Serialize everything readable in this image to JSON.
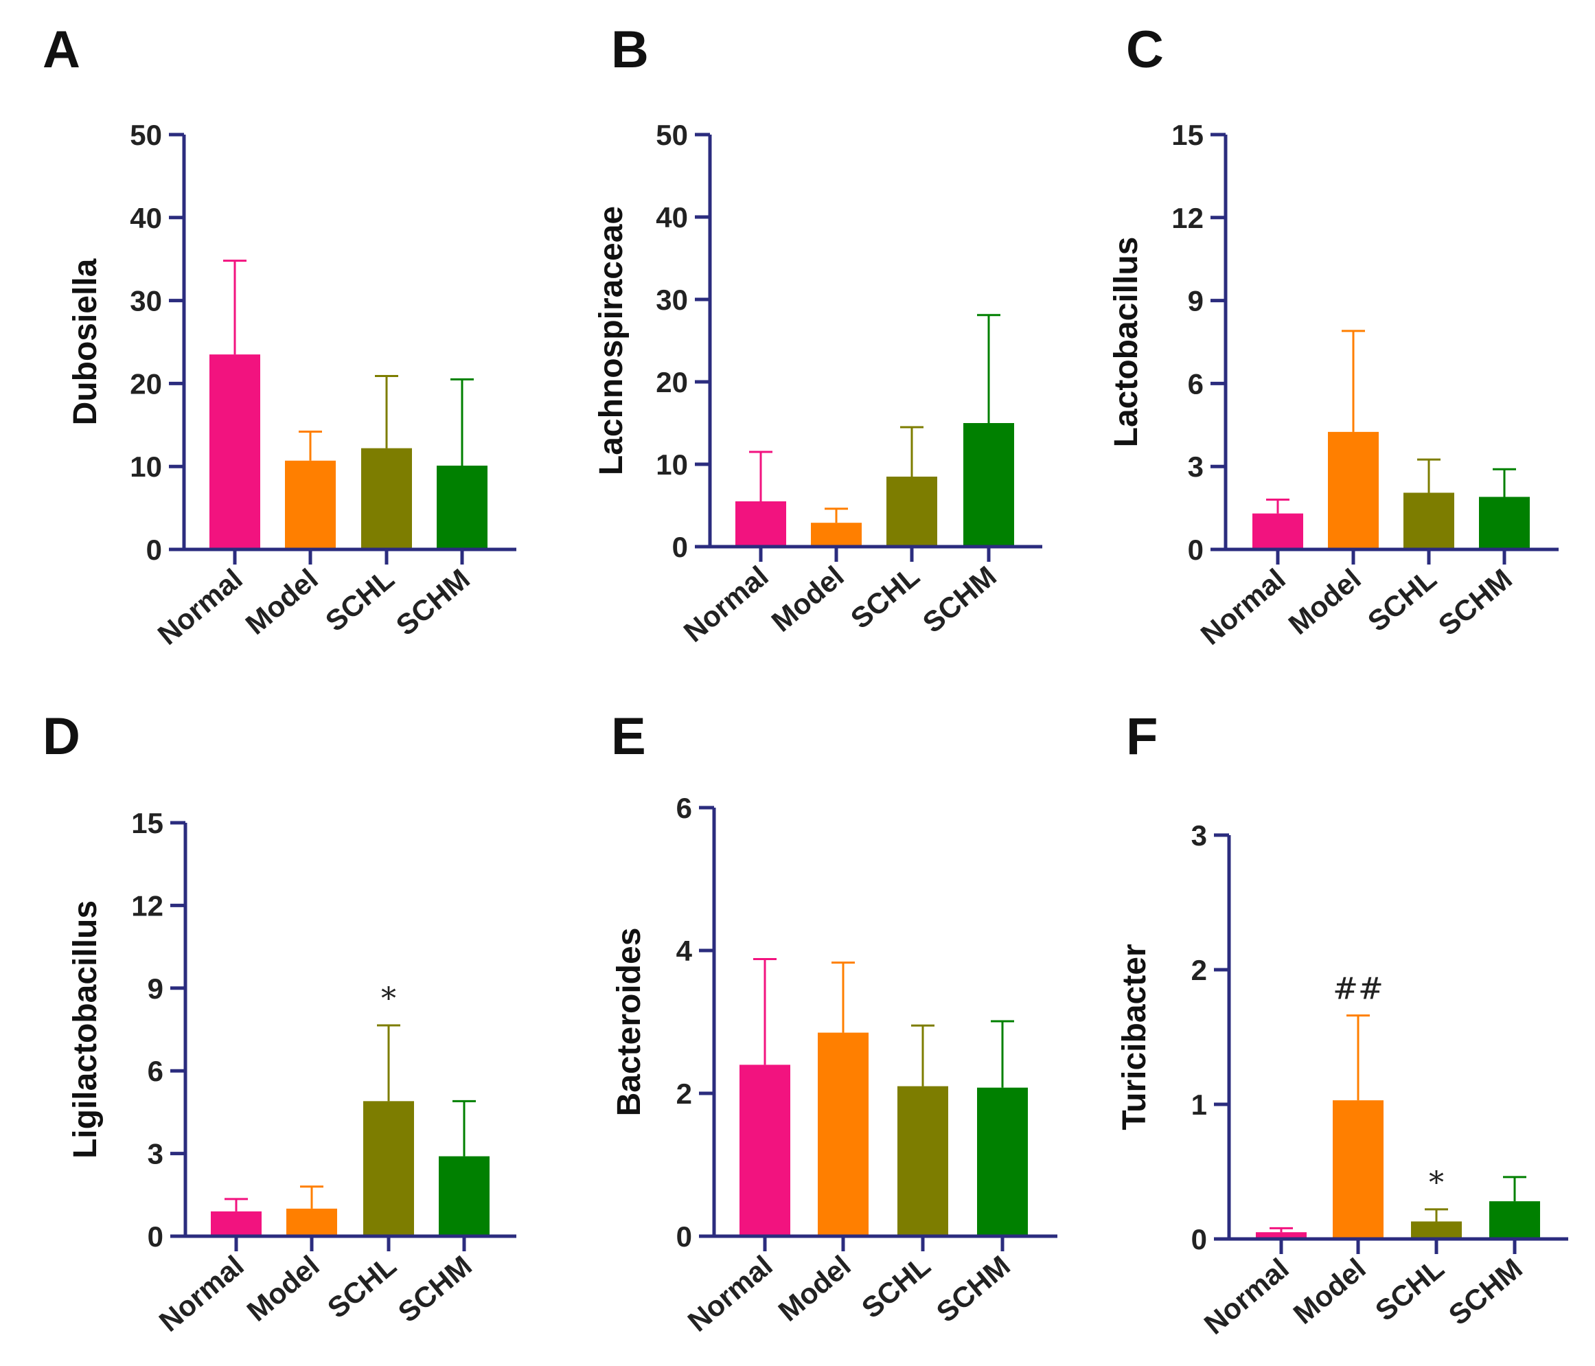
{
  "colors": {
    "axis": "#2B2C7E",
    "Normal": "#F2137F",
    "Model": "#FF7F00",
    "SCHL": "#7D7D00",
    "SCHM": "#008000"
  },
  "chart_data": [
    {
      "type": "bar",
      "panel": "A",
      "ylabel": "Dubosiella",
      "categories": [
        "Normal",
        "Model",
        "SCHL",
        "SCHM"
      ],
      "values": [
        23.5,
        10.7,
        12.2,
        10.1
      ],
      "errors": [
        11.3,
        3.5,
        8.7,
        10.4
      ],
      "ylim": [
        0,
        50
      ],
      "yticks": [
        "0",
        "10",
        "20",
        "30",
        "40",
        "50"
      ],
      "annotations": [
        "",
        "",
        "",
        ""
      ]
    },
    {
      "type": "bar",
      "panel": "B",
      "ylabel": "Lachnospiraceae",
      "categories": [
        "Normal",
        "Model",
        "SCHL",
        "SCHM"
      ],
      "values": [
        5.5,
        2.9,
        8.5,
        15.0
      ],
      "errors": [
        6.0,
        1.7,
        6.0,
        13.1
      ],
      "ylim": [
        0,
        50
      ],
      "yticks": [
        "0",
        "10",
        "20",
        "30",
        "40",
        "50"
      ],
      "annotations": [
        "",
        "",
        "",
        ""
      ]
    },
    {
      "type": "bar",
      "panel": "C",
      "ylabel": "Lactobacillus",
      "categories": [
        "Normal",
        "Model",
        "SCHL",
        "SCHM"
      ],
      "values": [
        1.3,
        4.25,
        2.05,
        1.9
      ],
      "errors": [
        0.5,
        3.65,
        1.2,
        1.0
      ],
      "ylim": [
        0,
        15
      ],
      "yticks": [
        "0",
        "3",
        "6",
        "9",
        "12",
        "15"
      ],
      "annotations": [
        "",
        "",
        "",
        ""
      ]
    },
    {
      "type": "bar",
      "panel": "D",
      "ylabel": "Ligilactobacillus",
      "categories": [
        "Normal",
        "Model",
        "SCHL",
        "SCHM"
      ],
      "values": [
        0.9,
        1.0,
        4.9,
        2.9
      ],
      "errors": [
        0.45,
        0.8,
        2.75,
        2.0
      ],
      "ylim": [
        0,
        15
      ],
      "yticks": [
        "0",
        "3",
        "6",
        "9",
        "12",
        "15"
      ],
      "annotations": [
        "",
        "",
        "*",
        ""
      ]
    },
    {
      "type": "bar",
      "panel": "E",
      "ylabel": "Bacteroides",
      "categories": [
        "Normal",
        "Model",
        "SCHL",
        "SCHM"
      ],
      "values": [
        2.4,
        2.85,
        2.1,
        2.08
      ],
      "errors": [
        1.48,
        0.98,
        0.85,
        0.93
      ],
      "ylim": [
        0,
        6
      ],
      "yticks": [
        "0",
        "2",
        "4",
        "6"
      ],
      "annotations": [
        "",
        "",
        "",
        ""
      ]
    },
    {
      "type": "bar",
      "panel": "F",
      "ylabel": "Turicibacter",
      "categories": [
        "Normal",
        "Model",
        "SCHL",
        "SCHM"
      ],
      "values": [
        0.05,
        1.03,
        0.13,
        0.28
      ],
      "errors": [
        0.03,
        0.63,
        0.09,
        0.18
      ],
      "ylim": [
        0,
        3
      ],
      "yticks": [
        "0",
        "1",
        "2",
        "3"
      ],
      "annotations": [
        "",
        "##",
        "*",
        ""
      ]
    }
  ]
}
